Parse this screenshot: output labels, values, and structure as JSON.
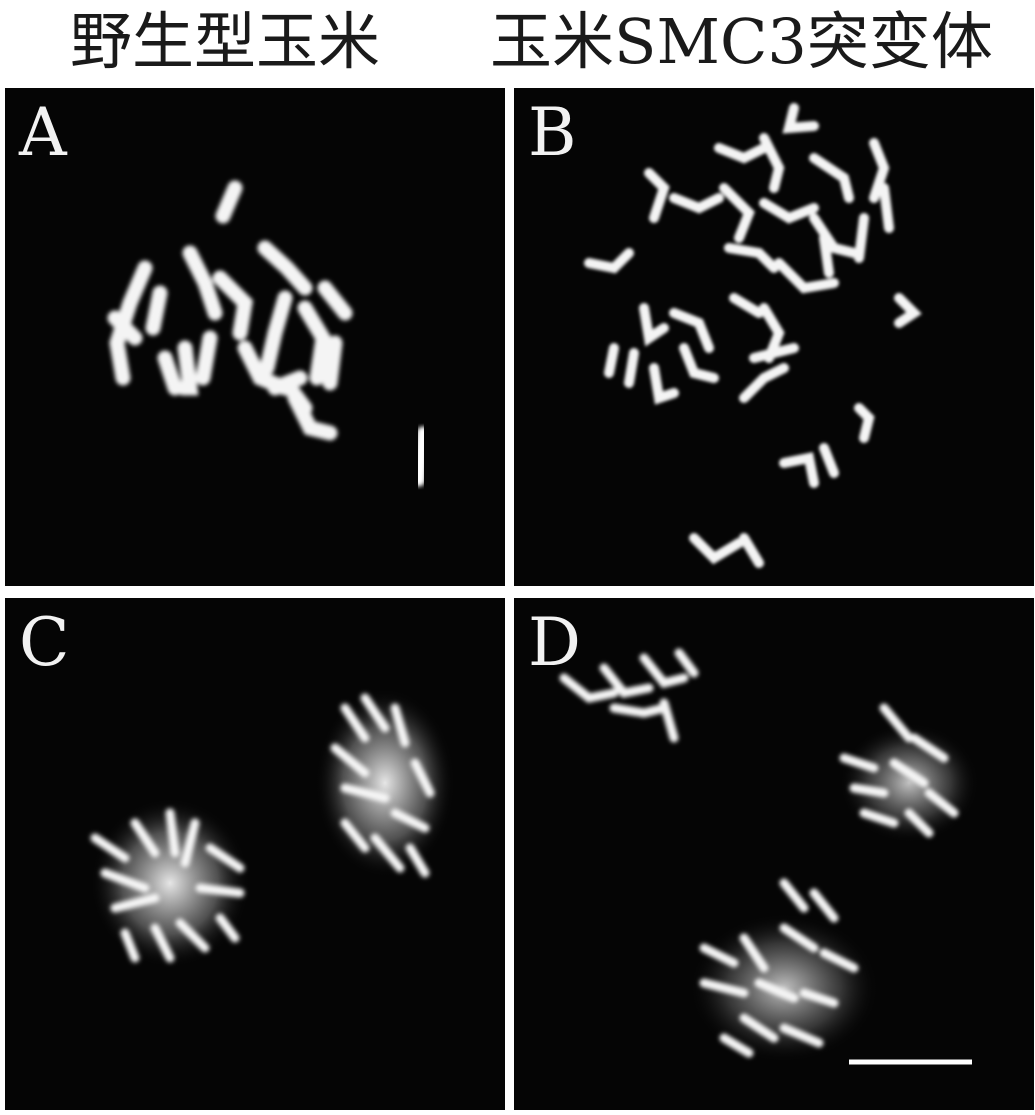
{
  "titles": {
    "left": "野生型玉米",
    "right": "玉米SMC3突变体"
  },
  "panels": [
    {
      "id": "a",
      "label": "A"
    },
    {
      "id": "b",
      "label": "B"
    },
    {
      "id": "c",
      "label": "C"
    },
    {
      "id": "d",
      "label": "D"
    }
  ],
  "colors": {
    "background": "#050505",
    "chromosome": "#f4f4f4",
    "scale_bar": "#ffffff"
  }
}
